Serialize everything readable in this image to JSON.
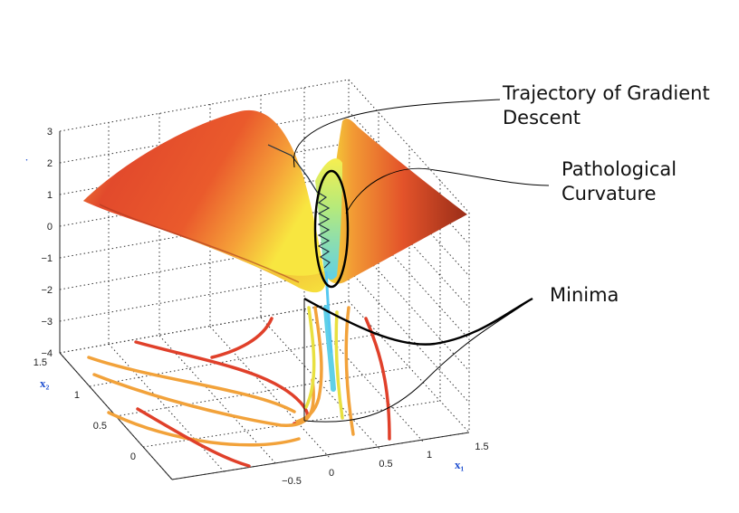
{
  "annotations": {
    "trajectory": [
      "Trajectory of Gradient",
      "Descent"
    ],
    "curvature": [
      "Pathological",
      "Curvature"
    ],
    "minima": "Minima"
  },
  "axes": {
    "z_ticks": [
      "3",
      "2",
      "1",
      "0",
      "−1",
      "−2",
      "−3",
      "−4"
    ],
    "y_ticks": [
      "1.5",
      "1",
      "0.5",
      "0"
    ],
    "x_ticks": [
      "−0.5",
      "0",
      "0.5",
      "1",
      "1.5"
    ],
    "x_label": "x₁",
    "y_label": "x₂"
  },
  "colors": {
    "surface_red": "#e2452a",
    "surface_orange": "#f08a2e",
    "surface_yellow": "#f4e43a",
    "valley_green": "#a8e87a",
    "valley_cyan": "#56c8f0",
    "contour_red": "#e0402a",
    "contour_orange": "#f2a23a",
    "contour_yellow": "#e8e040"
  }
}
